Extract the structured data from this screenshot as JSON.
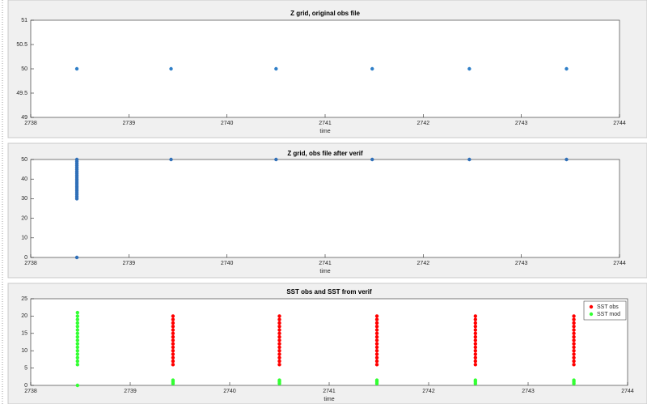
{
  "chart_data": [
    {
      "type": "scatter",
      "title": "Z grid, original obs file",
      "xlabel": "time",
      "x": [
        2738.47,
        2739.43,
        2740.5,
        2741.48,
        2742.47,
        2743.46
      ],
      "values": [
        50,
        50,
        50,
        50,
        50,
        50
      ],
      "color": "#2f7fc8",
      "xlim": [
        2738,
        2744
      ],
      "xticks": [
        2738,
        2739,
        2740,
        2741,
        2742,
        2743,
        2744
      ],
      "ylim": [
        49,
        51
      ],
      "yticks": [
        49,
        49.5,
        50,
        50.5,
        51
      ],
      "grid": false
    },
    {
      "type": "scatter",
      "title": "Z grid, obs file after verif",
      "xlabel": "time",
      "x": [
        2738.47,
        2738.47,
        2738.47,
        2738.47,
        2738.47,
        2738.47,
        2738.47,
        2738.47,
        2738.47,
        2738.47,
        2738.47,
        2738.47,
        2738.47,
        2738.47,
        2738.47,
        2738.47,
        2738.47,
        2738.47,
        2738.47,
        2738.47,
        2738.47,
        2738.47,
        2739.43,
        2740.5,
        2741.48,
        2742.47,
        2743.46
      ],
      "values": [
        30,
        31,
        32,
        33,
        34,
        35,
        36,
        37,
        38,
        39,
        40,
        41,
        42,
        43,
        44,
        45,
        46,
        47,
        48,
        49,
        50,
        0,
        50,
        50,
        50,
        50,
        50
      ],
      "color": "#2f6fb8",
      "xlim": [
        2738,
        2744
      ],
      "xticks": [
        2738,
        2739,
        2740,
        2741,
        2742,
        2743,
        2744
      ],
      "ylim": [
        0,
        50
      ],
      "yticks": [
        0,
        10,
        20,
        30,
        40,
        50
      ],
      "grid": false
    },
    {
      "type": "scatter",
      "title": "SST obs and SST from verif",
      "xlabel": "time",
      "legend": "northeast",
      "xlim": [
        2738,
        2744
      ],
      "xticks": [
        2738,
        2739,
        2740,
        2741,
        2742,
        2743,
        2744
      ],
      "ylim": [
        0,
        25
      ],
      "yticks": [
        0,
        5,
        10,
        15,
        20,
        25
      ],
      "grid": false,
      "series": [
        {
          "name": "SST obs",
          "color": "#ff0000",
          "x": [
            2739.43,
            2739.43,
            2739.43,
            2739.43,
            2739.43,
            2739.43,
            2739.43,
            2739.43,
            2739.43,
            2739.43,
            2739.43,
            2739.43,
            2739.43,
            2739.43,
            2739.43,
            2740.5,
            2740.5,
            2740.5,
            2740.5,
            2740.5,
            2740.5,
            2740.5,
            2740.5,
            2740.5,
            2740.5,
            2740.5,
            2740.5,
            2740.5,
            2740.5,
            2740.5,
            2741.48,
            2741.48,
            2741.48,
            2741.48,
            2741.48,
            2741.48,
            2741.48,
            2741.48,
            2741.48,
            2741.48,
            2741.48,
            2741.48,
            2741.48,
            2741.48,
            2741.48,
            2742.47,
            2742.47,
            2742.47,
            2742.47,
            2742.47,
            2742.47,
            2742.47,
            2742.47,
            2742.47,
            2742.47,
            2742.47,
            2742.47,
            2742.47,
            2742.47,
            2742.47,
            2743.46,
            2743.46,
            2743.46,
            2743.46,
            2743.46,
            2743.46,
            2743.46,
            2743.46,
            2743.46,
            2743.46,
            2743.46,
            2743.46,
            2743.46,
            2743.46,
            2743.46
          ],
          "values": [
            6,
            7,
            8,
            9,
            10,
            11,
            12,
            13,
            14,
            15,
            16,
            17,
            18,
            19,
            20,
            6,
            7,
            8,
            9,
            10,
            11,
            12,
            13,
            14,
            15,
            16,
            17,
            18,
            19,
            20,
            6,
            7,
            8,
            9,
            10,
            11,
            12,
            13,
            14,
            15,
            16,
            17,
            18,
            19,
            20,
            6,
            7,
            8,
            9,
            10,
            11,
            12,
            13,
            14,
            15,
            16,
            17,
            18,
            19,
            20,
            6,
            7,
            8,
            9,
            10,
            11,
            12,
            13,
            14,
            15,
            16,
            17,
            18,
            19,
            20
          ]
        },
        {
          "name": "SST mod",
          "color": "#33ff33",
          "x": [
            2738.47,
            2738.47,
            2738.47,
            2738.47,
            2738.47,
            2738.47,
            2738.47,
            2738.47,
            2738.47,
            2738.47,
            2738.47,
            2738.47,
            2738.47,
            2738.47,
            2738.47,
            2738.47,
            2738.47,
            2739.43,
            2739.43,
            2739.43,
            2740.5,
            2740.5,
            2740.5,
            2741.48,
            2741.48,
            2741.48,
            2742.47,
            2742.47,
            2742.47,
            2743.46,
            2743.46,
            2743.46
          ],
          "values": [
            6,
            7,
            8,
            9,
            10,
            11,
            12,
            13,
            14,
            15,
            16,
            17,
            18,
            19,
            20,
            21,
            0,
            0.5,
            1,
            1.5,
            0.5,
            1,
            1.5,
            0.5,
            1,
            1.5,
            0.5,
            1,
            1.5,
            0.5,
            1,
            1.5
          ]
        }
      ]
    }
  ]
}
